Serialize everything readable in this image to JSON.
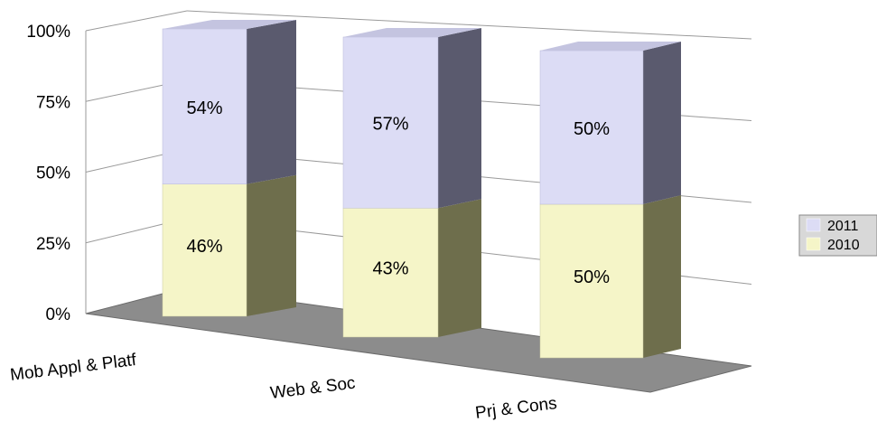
{
  "chart_data": {
    "type": "bar",
    "stacked": true,
    "percent_stacked": true,
    "three_d": true,
    "categories": [
      "Mob Appl & Platf",
      "Web & Soc",
      "Prj & Cons"
    ],
    "series": [
      {
        "name": "2010",
        "values": [
          46,
          43,
          50
        ],
        "labels": [
          "46%",
          "43%",
          "50%"
        ],
        "color": "#f5f5c8"
      },
      {
        "name": "2011",
        "values": [
          54,
          57,
          50
        ],
        "labels": [
          "54%",
          "57%",
          "50%"
        ],
        "color": "#dcdcf5"
      }
    ],
    "y_ticks": [
      "0%",
      "25%",
      "50%",
      "75%",
      "100%"
    ],
    "ylim": [
      0,
      100
    ],
    "grid": true,
    "legend": {
      "position": "right",
      "items": [
        "2011",
        "2010"
      ]
    },
    "floor_color": "#8c8c8c"
  }
}
